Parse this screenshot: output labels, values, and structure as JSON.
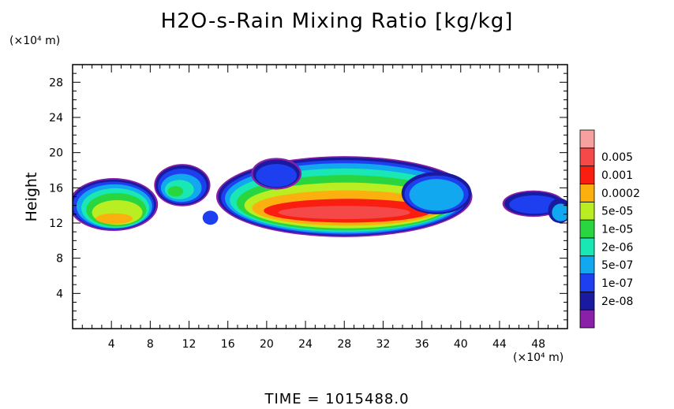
{
  "chart_data": {
    "type": "heatmap",
    "title": "H2O-s-Rain Mixing Ratio [kg/kg]",
    "ylabel": "Height",
    "x_unit": "(×10⁴ m)",
    "y_unit": "(×10⁴ m)",
    "xlim": [
      0,
      51
    ],
    "ylim": [
      0,
      30
    ],
    "x_ticks": [
      "4",
      "8",
      "12",
      "16",
      "20",
      "24",
      "28",
      "32",
      "36",
      "40",
      "44",
      "48"
    ],
    "y_ticks": [
      "4",
      "8",
      "12",
      "16",
      "20",
      "24",
      "28"
    ],
    "legend": {
      "levels": [
        "2e-08",
        "1e-07",
        "5e-07",
        "2e-06",
        "1e-05",
        "5e-05",
        "0.0002",
        "0.001",
        "0.005"
      ],
      "colors": [
        "#8a1fa8",
        "#1a1aa0",
        "#1e3ff0",
        "#11a8f0",
        "#19e8b4",
        "#2ad640",
        "#b8ee22",
        "#fbb010",
        "#fa1e10",
        "#f54848",
        "#f7a0a0"
      ]
    },
    "clouds": [
      {
        "x_range": [
          0,
          8.5
        ],
        "y_range": [
          11,
          17
        ],
        "peak": "5e-05"
      },
      {
        "x_range": [
          8.5,
          14
        ],
        "y_range": [
          14,
          19
        ],
        "peak": "2e-06"
      },
      {
        "x_range": [
          15,
          41
        ],
        "y_range": [
          10.5,
          19.5
        ],
        "peak": "0.001"
      },
      {
        "x_range": [
          44.5,
          51
        ],
        "y_range": [
          12,
          16
        ],
        "peak": "1e-07"
      }
    ],
    "time_label": "TIME = 1015488.0"
  }
}
